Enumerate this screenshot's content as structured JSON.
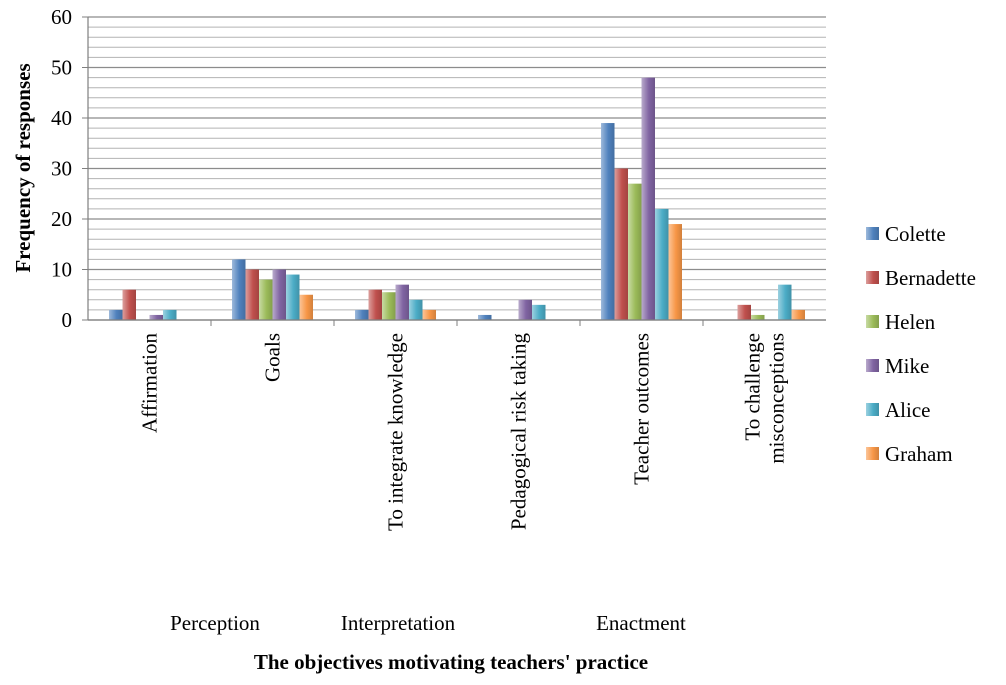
{
  "chart_data": {
    "type": "bar",
    "title": "",
    "xlabel": "The objectives motivating teachers' practice",
    "ylabel": "Frequency of responses",
    "ylim": [
      0,
      60
    ],
    "y_major_ticks": [
      "0",
      "10",
      "20",
      "30",
      "40",
      "50",
      "60"
    ],
    "grid": true,
    "categories": [
      "Affirmation",
      "Goals",
      "To integrate knowledge",
      "Pedagogical risk taking",
      "Teacher outcomes",
      "To challenge misconceptions"
    ],
    "category_groups": [
      "Perception",
      "Interpretation",
      "Enactment"
    ],
    "series": [
      {
        "name": "Colette",
        "color": "#4F81BD",
        "values": [
          2,
          12,
          2,
          1,
          39,
          0
        ]
      },
      {
        "name": "Bernadette",
        "color": "#C0504D",
        "values": [
          6,
          10,
          6,
          0,
          30,
          3
        ]
      },
      {
        "name": "Helen",
        "color": "#9BBB59",
        "values": [
          0,
          8,
          5.5,
          0,
          27,
          1
        ]
      },
      {
        "name": "Mike",
        "color": "#8064A2",
        "values": [
          1,
          10,
          7,
          4,
          48,
          0
        ]
      },
      {
        "name": "Alice",
        "color": "#4BACC6",
        "values": [
          2,
          9,
          4,
          3,
          22,
          7
        ]
      },
      {
        "name": "Graham",
        "color": "#F79646",
        "values": [
          0,
          5,
          2,
          0,
          19,
          2
        ]
      }
    ],
    "legend_position": "right"
  }
}
